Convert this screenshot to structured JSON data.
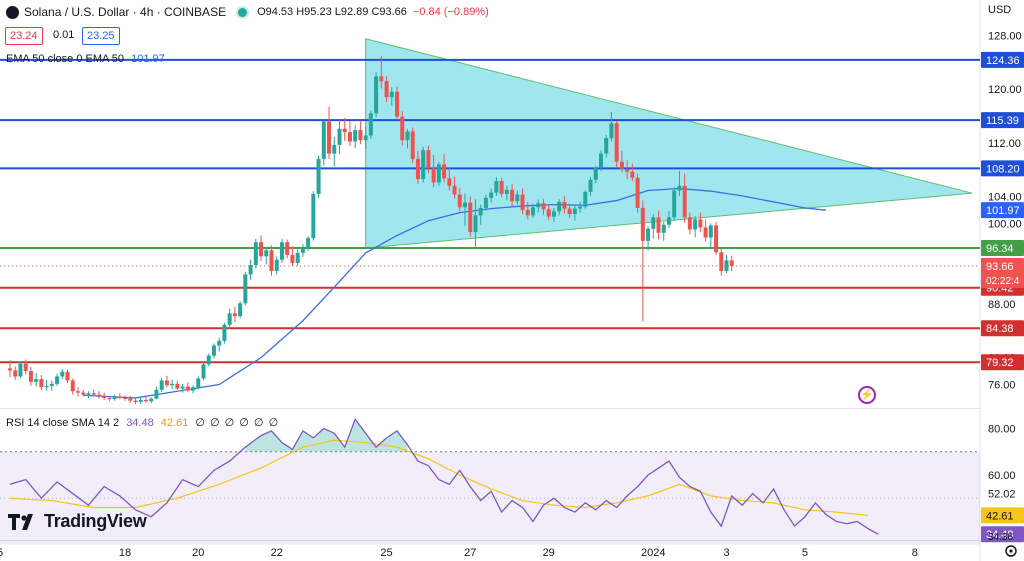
{
  "header": {
    "symbol": "Solana / U.S. Dollar · 4h · COINBASE",
    "ohlc": "O94.53 H95.23 L92.89 C93.66",
    "change": "−0.84 (−0.89%)"
  },
  "price_boxes": {
    "bid": "23.24",
    "spread": "0.01",
    "ask": "23.25"
  },
  "ema_legend": {
    "label": "EMA 50 close 0 EMA 50",
    "value": "101.97"
  },
  "rsi_legend": {
    "label": "RSI 14 close SMA 14 2",
    "rsi": "34.48",
    "sma": "42.61",
    "extra": "∅ ∅ ∅ ∅ ∅ ∅"
  },
  "axis_currency": "USD",
  "brand": "TradingView",
  "colors": {
    "up": "#26a69a",
    "down": "#ef5350",
    "ema": "#3b6fe0",
    "rsi": "#7e57c2",
    "rsi_sma": "#f5c518",
    "triangle": "#7fdde9",
    "resistance_blue": "#1e4fd8",
    "support_red": "#d32f2f",
    "support_green": "#43a047"
  },
  "chart_data": {
    "type": "candlestick",
    "title": "Solana / U.S. Dollar · 4h · COINBASE",
    "x_ticks": [
      "5",
      "18",
      "20",
      "22",
      "25",
      "27",
      "29",
      "2024",
      "3",
      "5",
      "8"
    ],
    "x_tick_index": [
      0,
      22,
      36,
      51,
      72,
      88,
      103,
      123,
      137,
      152,
      173
    ],
    "y_ticks": [
      128.0,
      124.0,
      120.0,
      116.0,
      112.0,
      108.0,
      104.0,
      100.0,
      96.0,
      92.0,
      88.0,
      84.0,
      80.0,
      76.0
    ],
    "y_tick_labels": [
      "128.00",
      "124.00",
      "120.00",
      "116.00",
      "112.00",
      "108.00",
      "104.00",
      "100.00",
      "96.00",
      "92.00",
      "88.00",
      "84.00",
      "80.00",
      "76.00"
    ],
    "ylim": [
      72.5,
      130.0
    ],
    "horizontal_levels": [
      {
        "value": 124.36,
        "label": "124.36",
        "color": "blue"
      },
      {
        "value": 115.39,
        "label": "115.39",
        "color": "blue"
      },
      {
        "value": 108.2,
        "label": "108.20",
        "color": "blue"
      },
      {
        "value": 96.34,
        "label": "96.34",
        "color": "green"
      },
      {
        "value": 90.42,
        "label": "90.42",
        "color": "red"
      },
      {
        "value": 84.38,
        "label": "84.38",
        "color": "red"
      },
      {
        "value": 79.32,
        "label": "79.32",
        "color": "red"
      }
    ],
    "ema_label": "101.97",
    "last_price": {
      "value": 93.66,
      "label": "93.66",
      "countdown": "02:22:4"
    },
    "triangle": [
      [
        68,
        127.5
      ],
      [
        184,
        104.5
      ],
      [
        68,
        96.34
      ]
    ],
    "candles": [
      [
        78.4,
        79.6,
        77.1,
        78.1
      ],
      [
        78.1,
        78.7,
        76.7,
        77.2
      ],
      [
        77.2,
        79.5,
        77.0,
        79.1
      ],
      [
        79.1,
        79.7,
        77.5,
        78.0
      ],
      [
        78.0,
        78.6,
        75.8,
        76.4
      ],
      [
        76.4,
        77.7,
        75.7,
        76.8
      ],
      [
        76.8,
        77.4,
        75.2,
        75.6
      ],
      [
        75.6,
        76.7,
        75.1,
        75.8
      ],
      [
        75.8,
        76.6,
        75.1,
        76.1
      ],
      [
        76.1,
        77.6,
        75.8,
        77.2
      ],
      [
        77.2,
        78.3,
        76.8,
        77.9
      ],
      [
        77.9,
        78.2,
        76.2,
        76.6
      ],
      [
        76.6,
        76.9,
        74.5,
        75.0
      ],
      [
        75.0,
        75.6,
        74.2,
        74.8
      ],
      [
        74.8,
        75.2,
        74.2,
        74.5
      ],
      [
        74.5,
        75.0,
        74.0,
        74.7
      ],
      [
        74.7,
        75.3,
        74.3,
        74.5
      ],
      [
        74.5,
        75.0,
        73.9,
        74.2
      ],
      [
        74.2,
        74.8,
        73.7,
        74.0
      ],
      [
        74.0,
        74.3,
        73.5,
        73.8
      ],
      [
        73.8,
        74.5,
        73.6,
        74.2
      ],
      [
        74.2,
        74.7,
        73.8,
        74.0
      ],
      [
        74.0,
        74.4,
        73.6,
        73.9
      ],
      [
        73.9,
        74.3,
        73.3,
        73.6
      ],
      [
        73.6,
        74.0,
        73.1,
        73.4
      ],
      [
        73.4,
        74.0,
        73.1,
        73.7
      ],
      [
        73.7,
        74.2,
        73.3,
        73.5
      ],
      [
        73.5,
        74.1,
        73.2,
        73.9
      ],
      [
        73.9,
        75.7,
        73.8,
        75.2
      ],
      [
        75.2,
        77.0,
        74.9,
        76.6
      ],
      [
        76.6,
        77.3,
        75.6,
        75.9
      ],
      [
        75.9,
        76.7,
        75.3,
        76.1
      ],
      [
        76.1,
        76.6,
        75.2,
        75.4
      ],
      [
        75.4,
        76.1,
        74.8,
        75.7
      ],
      [
        75.7,
        76.3,
        74.9,
        75.1
      ],
      [
        75.1,
        75.9,
        74.7,
        75.6
      ],
      [
        75.6,
        77.2,
        75.3,
        76.9
      ],
      [
        76.9,
        79.3,
        76.6,
        79.0
      ],
      [
        79.0,
        80.6,
        78.7,
        80.3
      ],
      [
        80.3,
        82.1,
        79.9,
        81.8
      ],
      [
        81.8,
        83.0,
        80.9,
        82.5
      ],
      [
        82.5,
        85.2,
        82.1,
        84.9
      ],
      [
        84.9,
        87.3,
        84.2,
        86.6
      ],
      [
        86.6,
        87.6,
        85.3,
        86.2
      ],
      [
        86.2,
        88.4,
        85.9,
        88.1
      ],
      [
        88.1,
        92.8,
        87.8,
        92.4
      ],
      [
        92.4,
        94.6,
        91.6,
        93.8
      ],
      [
        93.8,
        97.7,
        93.3,
        97.2
      ],
      [
        97.2,
        98.2,
        94.4,
        95.1
      ],
      [
        95.1,
        96.5,
        93.9,
        96.0
      ],
      [
        96.0,
        96.7,
        92.2,
        92.9
      ],
      [
        92.9,
        95.1,
        92.4,
        94.6
      ],
      [
        94.6,
        97.7,
        94.1,
        97.2
      ],
      [
        97.2,
        97.6,
        94.8,
        95.3
      ],
      [
        95.3,
        96.6,
        93.6,
        94.1
      ],
      [
        94.1,
        96.1,
        93.7,
        95.6
      ],
      [
        95.6,
        96.9,
        95.0,
        96.3
      ],
      [
        96.3,
        98.1,
        95.9,
        97.8
      ],
      [
        97.8,
        104.8,
        97.4,
        104.4
      ],
      [
        104.4,
        110.1,
        103.8,
        109.6
      ],
      [
        109.6,
        115.4,
        108.6,
        115.2
      ],
      [
        115.2,
        117.4,
        109.6,
        110.4
      ],
      [
        110.4,
        112.9,
        108.5,
        111.7
      ],
      [
        111.7,
        115.6,
        110.3,
        114.1
      ],
      [
        114.1,
        115.7,
        112.3,
        113.6
      ],
      [
        113.6,
        115.2,
        111.5,
        112.2
      ],
      [
        112.2,
        114.6,
        111.2,
        113.9
      ],
      [
        113.9,
        115.3,
        111.8,
        112.4
      ],
      [
        112.4,
        114.4,
        111.1,
        113.1
      ],
      [
        113.1,
        116.8,
        112.6,
        116.4
      ],
      [
        116.4,
        122.5,
        115.8,
        121.9
      ],
      [
        121.9,
        124.9,
        120.1,
        121.2
      ],
      [
        121.2,
        121.9,
        118.1,
        118.8
      ],
      [
        118.8,
        120.3,
        117.5,
        119.6
      ],
      [
        119.6,
        120.4,
        115.4,
        115.9
      ],
      [
        115.9,
        116.7,
        111.6,
        112.4
      ],
      [
        112.4,
        114.1,
        111.2,
        113.7
      ],
      [
        113.7,
        114.3,
        109.0,
        109.6
      ],
      [
        109.6,
        110.8,
        105.9,
        106.6
      ],
      [
        106.6,
        111.4,
        106.1,
        110.9
      ],
      [
        110.9,
        111.6,
        107.5,
        108.2
      ],
      [
        108.2,
        110.2,
        105.4,
        106.1
      ],
      [
        106.1,
        109.2,
        105.6,
        108.8
      ],
      [
        108.8,
        110.3,
        106.1,
        106.7
      ],
      [
        106.7,
        108.4,
        104.9,
        105.6
      ],
      [
        105.6,
        107.0,
        103.7,
        104.3
      ],
      [
        104.3,
        105.3,
        101.8,
        102.4
      ],
      [
        102.4,
        104.4,
        99.6,
        103.1
      ],
      [
        103.1,
        104.0,
        98.0,
        98.7
      ],
      [
        98.7,
        103.6,
        96.3,
        101.2
      ],
      [
        101.2,
        102.8,
        99.8,
        102.3
      ],
      [
        102.3,
        104.3,
        101.9,
        103.8
      ],
      [
        103.8,
        105.2,
        103.1,
        104.6
      ],
      [
        104.6,
        106.9,
        104.1,
        106.3
      ],
      [
        106.3,
        106.8,
        103.9,
        104.4
      ],
      [
        104.4,
        105.6,
        103.4,
        105.0
      ],
      [
        105.0,
        105.9,
        102.6,
        103.3
      ],
      [
        103.3,
        104.9,
        102.8,
        104.3
      ],
      [
        104.3,
        105.2,
        101.4,
        102.0
      ],
      [
        102.0,
        103.2,
        100.6,
        101.2
      ],
      [
        101.2,
        102.9,
        100.8,
        102.4
      ],
      [
        102.4,
        103.6,
        101.6,
        103.0
      ],
      [
        103.0,
        103.7,
        101.3,
        102.1
      ],
      [
        102.1,
        102.8,
        100.5,
        101.0
      ],
      [
        101.0,
        102.3,
        100.2,
        101.8
      ],
      [
        101.8,
        103.6,
        101.2,
        103.2
      ],
      [
        103.2,
        104.1,
        101.5,
        102.2
      ],
      [
        102.2,
        102.9,
        100.8,
        101.4
      ],
      [
        101.4,
        102.6,
        100.4,
        102.2
      ],
      [
        102.2,
        103.2,
        101.6,
        102.5
      ],
      [
        102.5,
        104.9,
        102.2,
        104.7
      ],
      [
        104.7,
        106.9,
        104.1,
        106.5
      ],
      [
        106.5,
        108.6,
        106.0,
        108.3
      ],
      [
        108.3,
        110.9,
        107.8,
        110.4
      ],
      [
        110.4,
        113.2,
        109.8,
        112.7
      ],
      [
        112.7,
        116.6,
        112.2,
        114.9
      ],
      [
        114.9,
        115.3,
        108.4,
        109.2
      ],
      [
        109.2,
        110.8,
        107.6,
        108.1
      ],
      [
        108.1,
        109.4,
        106.6,
        107.7
      ],
      [
        107.7,
        108.9,
        106.3,
        106.8
      ],
      [
        106.8,
        107.4,
        101.6,
        102.3
      ],
      [
        102.3,
        103.4,
        85.4,
        97.4
      ],
      [
        97.4,
        99.6,
        96.0,
        99.2
      ],
      [
        99.2,
        101.4,
        97.7,
        100.9
      ],
      [
        100.9,
        101.9,
        97.6,
        98.6
      ],
      [
        98.6,
        100.2,
        97.4,
        99.8
      ],
      [
        99.8,
        101.8,
        99.3,
        100.9
      ],
      [
        100.9,
        105.4,
        100.4,
        104.9
      ],
      [
        104.9,
        107.8,
        104.1,
        105.6
      ],
      [
        105.6,
        107.4,
        100.1,
        100.9
      ],
      [
        100.9,
        101.6,
        98.4,
        99.1
      ],
      [
        99.1,
        101.1,
        97.9,
        100.6
      ],
      [
        100.6,
        101.6,
        98.7,
        99.4
      ],
      [
        99.4,
        100.6,
        97.3,
        97.9
      ],
      [
        97.9,
        100.0,
        96.4,
        99.7
      ],
      [
        99.7,
        100.2,
        95.3,
        95.7
      ],
      [
        95.7,
        96.2,
        92.2,
        92.9
      ],
      [
        92.9,
        95.3,
        92.6,
        94.5
      ],
      [
        94.5,
        95.2,
        92.9,
        93.66
      ]
    ],
    "ema50": [
      [
        14,
        74.4
      ],
      [
        24,
        74.0
      ],
      [
        32,
        75.0
      ],
      [
        40,
        76.0
      ],
      [
        48,
        80.0
      ],
      [
        56,
        85.5
      ],
      [
        62,
        90.5
      ],
      [
        68,
        95.6
      ],
      [
        74,
        98.2
      ],
      [
        80,
        100.4
      ],
      [
        86,
        101.6
      ],
      [
        92,
        102.2
      ],
      [
        98,
        102.6
      ],
      [
        104,
        102.8
      ],
      [
        110,
        102.7
      ],
      [
        116,
        103.4
      ],
      [
        122,
        104.9
      ],
      [
        128,
        105.2
      ],
      [
        134,
        104.8
      ],
      [
        140,
        104.1
      ],
      [
        146,
        103.2
      ],
      [
        152,
        102.3
      ],
      [
        156,
        101.97
      ]
    ],
    "rsi": {
      "ylim": [
        32,
        88
      ],
      "y_ticks": [
        80.0,
        60.0,
        52.02
      ],
      "y_tick_labels": [
        "80.00",
        "60.00",
        "52.02"
      ],
      "bands": [
        70,
        30
      ],
      "value_label": "34.48",
      "sma_label": "42.61",
      "extra_label": "34.36",
      "rsi_values": [
        [
          0,
          56
        ],
        [
          3,
          58
        ],
        [
          6,
          50
        ],
        [
          9,
          57
        ],
        [
          12,
          52
        ],
        [
          15,
          47
        ],
        [
          18,
          55
        ],
        [
          21,
          51
        ],
        [
          24,
          45
        ],
        [
          27,
          42
        ],
        [
          30,
          48
        ],
        [
          33,
          58
        ],
        [
          36,
          55
        ],
        [
          39,
          62
        ],
        [
          42,
          66
        ],
        [
          45,
          72
        ],
        [
          48,
          77
        ],
        [
          50,
          79
        ],
        [
          52,
          74
        ],
        [
          54,
          71
        ],
        [
          56,
          79
        ],
        [
          58,
          76
        ],
        [
          60,
          80
        ],
        [
          62,
          78
        ],
        [
          64,
          72
        ],
        [
          66,
          84
        ],
        [
          68,
          78
        ],
        [
          70,
          72
        ],
        [
          72,
          76
        ],
        [
          74,
          79
        ],
        [
          76,
          73
        ],
        [
          78,
          66
        ],
        [
          80,
          64
        ],
        [
          82,
          58
        ],
        [
          84,
          56
        ],
        [
          86,
          62
        ],
        [
          88,
          55
        ],
        [
          90,
          49
        ],
        [
          92,
          53
        ],
        [
          94,
          44
        ],
        [
          96,
          49
        ],
        [
          98,
          46
        ],
        [
          100,
          40
        ],
        [
          102,
          47
        ],
        [
          104,
          50
        ],
        [
          106,
          46
        ],
        [
          108,
          44
        ],
        [
          110,
          48
        ],
        [
          112,
          45
        ],
        [
          114,
          49
        ],
        [
          116,
          46
        ],
        [
          118,
          51
        ],
        [
          120,
          55
        ],
        [
          122,
          60
        ],
        [
          124,
          63
        ],
        [
          126,
          66
        ],
        [
          128,
          59
        ],
        [
          130,
          55
        ],
        [
          132,
          53
        ],
        [
          134,
          44
        ],
        [
          136,
          38
        ],
        [
          138,
          51
        ],
        [
          140,
          47
        ],
        [
          142,
          52
        ],
        [
          144,
          48
        ],
        [
          146,
          54
        ],
        [
          148,
          45
        ],
        [
          150,
          38
        ],
        [
          152,
          42
        ],
        [
          154,
          48
        ],
        [
          156,
          43
        ],
        [
          158,
          40
        ],
        [
          160,
          39
        ],
        [
          162,
          40
        ],
        [
          164,
          37
        ],
        [
          166,
          34.5
        ]
      ],
      "sma_values": [
        [
          0,
          50
        ],
        [
          8,
          49
        ],
        [
          16,
          46
        ],
        [
          24,
          46
        ],
        [
          32,
          50
        ],
        [
          40,
          56
        ],
        [
          48,
          63
        ],
        [
          56,
          72
        ],
        [
          62,
          75
        ],
        [
          68,
          74
        ],
        [
          74,
          72
        ],
        [
          80,
          67
        ],
        [
          86,
          60
        ],
        [
          92,
          54
        ],
        [
          98,
          49
        ],
        [
          104,
          47
        ],
        [
          110,
          46
        ],
        [
          116,
          48
        ],
        [
          122,
          51
        ],
        [
          128,
          56
        ],
        [
          134,
          51
        ],
        [
          140,
          49
        ],
        [
          146,
          48
        ],
        [
          152,
          45
        ],
        [
          158,
          44
        ],
        [
          164,
          42.6
        ]
      ]
    }
  }
}
